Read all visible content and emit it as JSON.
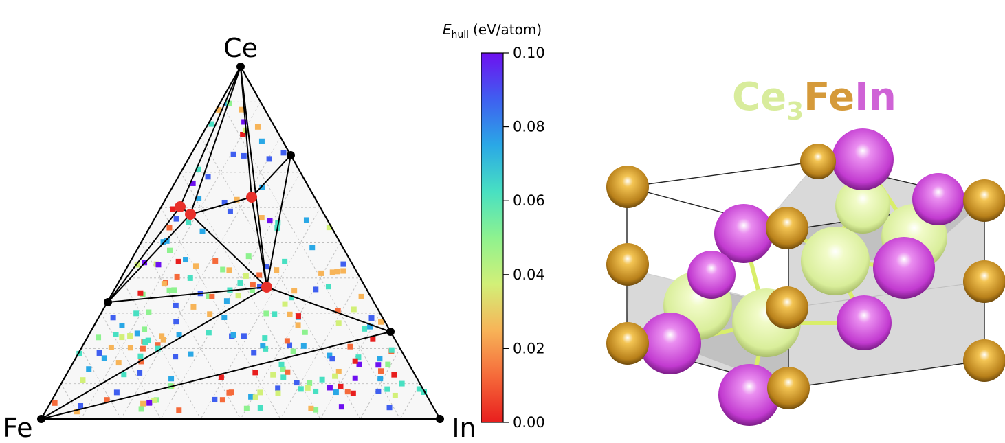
{
  "phase_diagram": {
    "vertices": {
      "top": "Ce",
      "left": "Fe",
      "right": "In"
    },
    "colorbar": {
      "title_symbol": "E",
      "title_subscript": "hull",
      "title_unit": "(eV/atom)",
      "min": 0.0,
      "max": 0.1,
      "ticks": [
        "0.00",
        "0.02",
        "0.04",
        "0.06",
        "0.08",
        "0.10"
      ],
      "colormap": "rainbow"
    },
    "colors": {
      "stable_phase": "#e8302a",
      "hull_line": "#000000"
    }
  },
  "structure": {
    "formula_parts": [
      {
        "text": "Ce",
        "color": "#d8ec9c"
      },
      {
        "text": "3",
        "color": "#d8ec9c",
        "subscript": true
      },
      {
        "text": "Fe",
        "color": "#d59a3a"
      },
      {
        "text": "In",
        "color": "#cf63d6"
      }
    ],
    "colors": {
      "Ce": "#d9ee9a",
      "Fe": "#b8801a",
      "In": "#c23ad0"
    }
  }
}
